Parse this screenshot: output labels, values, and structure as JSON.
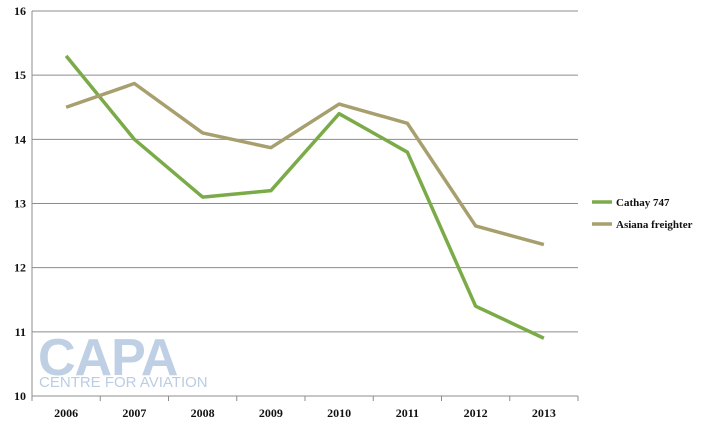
{
  "chart_data": {
    "type": "line",
    "categories": [
      "2006",
      "2007",
      "2008",
      "2009",
      "2010",
      "2011",
      "2012",
      "2013"
    ],
    "series": [
      {
        "name": "Cathay 747",
        "color": "#7aab48",
        "values": [
          15.3,
          14.0,
          13.1,
          13.2,
          14.4,
          13.8,
          11.4,
          10.9
        ]
      },
      {
        "name": "Asiana freighter",
        "color": "#a89f6e",
        "values": [
          14.5,
          14.87,
          14.1,
          13.87,
          14.55,
          14.25,
          12.65,
          12.36
        ]
      }
    ],
    "ylim": [
      10,
      16
    ],
    "yticks": [
      10,
      11,
      12,
      13,
      14,
      15,
      16
    ],
    "grid": true,
    "legend_position": "right"
  },
  "logo": {
    "main": "CAPA",
    "sub": "CENTRE FOR AVIATION"
  }
}
